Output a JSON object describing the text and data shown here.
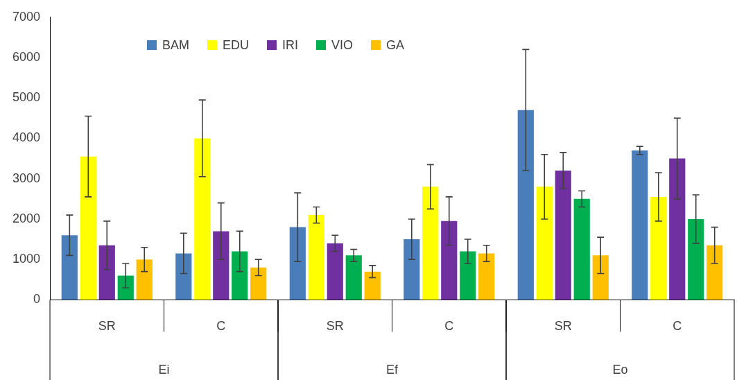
{
  "chart_data": {
    "type": "bar",
    "categories": [
      "SR",
      "C",
      "SR",
      "C",
      "SR",
      "C"
    ],
    "annotations": [
      "Ei",
      "Ef",
      "Eo"
    ],
    "series": [
      {
        "name": "BAM",
        "color": "#4a7ebb",
        "values": [
          1600,
          1150,
          1800,
          1500,
          4700,
          3700
        ],
        "errors": [
          500,
          500,
          850,
          500,
          1500,
          100
        ]
      },
      {
        "name": "EDU",
        "color": "#ffff00",
        "values": [
          3550,
          4000,
          2100,
          2800,
          2800,
          2550
        ],
        "errors": [
          1000,
          950,
          200,
          550,
          800,
          600
        ]
      },
      {
        "name": "IRI",
        "color": "#7030a0",
        "values": [
          1350,
          1700,
          1400,
          1950,
          3200,
          3500
        ],
        "errors": [
          600,
          700,
          200,
          600,
          450,
          1000
        ]
      },
      {
        "name": "VIO",
        "color": "#00b050",
        "values": [
          600,
          1200,
          1100,
          1200,
          2500,
          2000
        ],
        "errors": [
          300,
          500,
          150,
          300,
          200,
          600
        ]
      },
      {
        "name": "GA",
        "color": "#ffc000",
        "values": [
          1000,
          800,
          700,
          1150,
          1100,
          1350
        ],
        "errors": [
          300,
          200,
          150,
          200,
          450,
          450
        ]
      }
    ],
    "ylim": [
      0,
      7000
    ],
    "yticks": [
      0,
      1000,
      2000,
      3000,
      4000,
      5000,
      6000,
      7000
    ],
    "grid": false,
    "legend": "top left"
  }
}
